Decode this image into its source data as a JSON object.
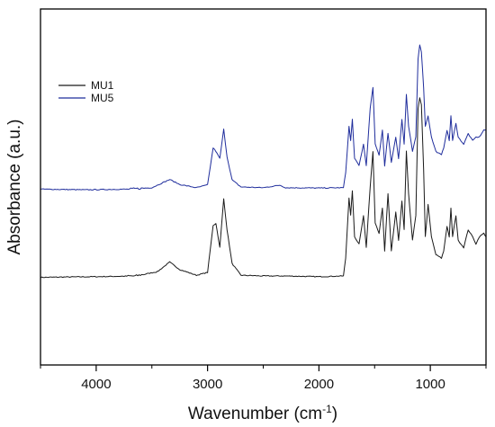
{
  "chart_data": {
    "type": "line",
    "xlabel": "Wavenumber (cm",
    "xlabel_sup": "-1",
    "xlabel_end": ")",
    "ylabel": "Absorbance (a.u.)",
    "xlim": [
      4500,
      500
    ],
    "ylim": [
      0,
      1
    ],
    "x_ticks": [
      4000,
      3000,
      2000,
      1000
    ],
    "x_tick_labels": [
      "4000",
      "3000",
      "2000",
      "1000"
    ],
    "y_ticks_shown": false,
    "legend_position": "top-left",
    "series": [
      {
        "name": "MU1",
        "color": "#1a1a1a",
        "points": [
          [
            4500,
            0.246
          ],
          [
            4300,
            0.247
          ],
          [
            4000,
            0.248
          ],
          [
            3800,
            0.249
          ],
          [
            3650,
            0.25
          ],
          [
            3450,
            0.262
          ],
          [
            3340,
            0.289
          ],
          [
            3250,
            0.268
          ],
          [
            3100,
            0.252
          ],
          [
            3000,
            0.26
          ],
          [
            2950,
            0.392
          ],
          [
            2925,
            0.398
          ],
          [
            2890,
            0.33
          ],
          [
            2855,
            0.467
          ],
          [
            2825,
            0.38
          ],
          [
            2780,
            0.285
          ],
          [
            2700,
            0.252
          ],
          [
            2500,
            0.25
          ],
          [
            2300,
            0.25
          ],
          [
            2000,
            0.248
          ],
          [
            1780,
            0.25
          ],
          [
            1760,
            0.3
          ],
          [
            1730,
            0.47
          ],
          [
            1715,
            0.42
          ],
          [
            1700,
            0.49
          ],
          [
            1680,
            0.36
          ],
          [
            1640,
            0.34
          ],
          [
            1600,
            0.42
          ],
          [
            1575,
            0.33
          ],
          [
            1540,
            0.5
          ],
          [
            1515,
            0.6
          ],
          [
            1495,
            0.4
          ],
          [
            1460,
            0.37
          ],
          [
            1430,
            0.44
          ],
          [
            1410,
            0.32
          ],
          [
            1380,
            0.48
          ],
          [
            1350,
            0.32
          ],
          [
            1310,
            0.43
          ],
          [
            1285,
            0.35
          ],
          [
            1255,
            0.46
          ],
          [
            1235,
            0.38
          ],
          [
            1215,
            0.6
          ],
          [
            1195,
            0.48
          ],
          [
            1160,
            0.35
          ],
          [
            1130,
            0.42
          ],
          [
            1110,
            0.72
          ],
          [
            1095,
            0.75
          ],
          [
            1080,
            0.73
          ],
          [
            1060,
            0.55
          ],
          [
            1045,
            0.36
          ],
          [
            1020,
            0.45
          ],
          [
            990,
            0.36
          ],
          [
            950,
            0.31
          ],
          [
            900,
            0.3
          ],
          [
            880,
            0.32
          ],
          [
            850,
            0.39
          ],
          [
            830,
            0.36
          ],
          [
            815,
            0.44
          ],
          [
            800,
            0.36
          ],
          [
            770,
            0.42
          ],
          [
            750,
            0.35
          ],
          [
            700,
            0.33
          ],
          [
            660,
            0.38
          ],
          [
            620,
            0.36
          ],
          [
            590,
            0.34
          ],
          [
            560,
            0.36
          ],
          [
            520,
            0.37
          ],
          [
            500,
            0.36
          ]
        ]
      },
      {
        "name": "MU5",
        "color": "#1f2d9c",
        "points": [
          [
            4500,
            0.494
          ],
          [
            4300,
            0.493
          ],
          [
            4100,
            0.492
          ],
          [
            3900,
            0.493
          ],
          [
            3700,
            0.494
          ],
          [
            3500,
            0.498
          ],
          [
            3340,
            0.521
          ],
          [
            3250,
            0.507
          ],
          [
            3100,
            0.498
          ],
          [
            3000,
            0.506
          ],
          [
            2950,
            0.61
          ],
          [
            2925,
            0.6
          ],
          [
            2890,
            0.58
          ],
          [
            2855,
            0.662
          ],
          [
            2825,
            0.585
          ],
          [
            2780,
            0.52
          ],
          [
            2700,
            0.5
          ],
          [
            2500,
            0.498
          ],
          [
            2350,
            0.505
          ],
          [
            2300,
            0.498
          ],
          [
            2000,
            0.497
          ],
          [
            1780,
            0.498
          ],
          [
            1760,
            0.54
          ],
          [
            1730,
            0.67
          ],
          [
            1715,
            0.63
          ],
          [
            1700,
            0.69
          ],
          [
            1680,
            0.58
          ],
          [
            1640,
            0.56
          ],
          [
            1600,
            0.62
          ],
          [
            1575,
            0.56
          ],
          [
            1540,
            0.72
          ],
          [
            1515,
            0.78
          ],
          [
            1495,
            0.62
          ],
          [
            1460,
            0.59
          ],
          [
            1430,
            0.66
          ],
          [
            1410,
            0.56
          ],
          [
            1380,
            0.65
          ],
          [
            1350,
            0.57
          ],
          [
            1310,
            0.64
          ],
          [
            1285,
            0.58
          ],
          [
            1255,
            0.69
          ],
          [
            1235,
            0.62
          ],
          [
            1215,
            0.76
          ],
          [
            1195,
            0.67
          ],
          [
            1160,
            0.6
          ],
          [
            1130,
            0.64
          ],
          [
            1110,
            0.86
          ],
          [
            1095,
            0.9
          ],
          [
            1080,
            0.88
          ],
          [
            1060,
            0.78
          ],
          [
            1045,
            0.67
          ],
          [
            1020,
            0.7
          ],
          [
            990,
            0.64
          ],
          [
            950,
            0.6
          ],
          [
            900,
            0.59
          ],
          [
            880,
            0.61
          ],
          [
            850,
            0.66
          ],
          [
            830,
            0.63
          ],
          [
            815,
            0.7
          ],
          [
            800,
            0.63
          ],
          [
            770,
            0.68
          ],
          [
            750,
            0.64
          ],
          [
            700,
            0.62
          ],
          [
            660,
            0.65
          ],
          [
            620,
            0.63
          ],
          [
            590,
            0.64
          ],
          [
            560,
            0.64
          ],
          [
            520,
            0.66
          ],
          [
            500,
            0.66
          ]
        ]
      }
    ]
  }
}
